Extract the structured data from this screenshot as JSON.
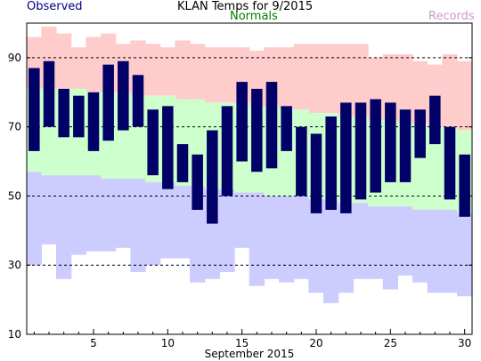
{
  "chart_data": {
    "type": "bar",
    "title": "KLAN Temps for 9/2015",
    "xlabel": "September 2015",
    "ylabel": "",
    "ylim": [
      10,
      100
    ],
    "xlim": [
      0.5,
      30.5
    ],
    "yticks": [
      10,
      30,
      50,
      70,
      90
    ],
    "xticks": [
      5,
      10,
      15,
      20,
      25,
      30
    ],
    "grid": "dashed horizontal at 30, 50, 70, 90",
    "legend": "top row: Observed (left), Normals (center), Records (right)",
    "legend_labels": {
      "observed": "Observed",
      "normals": "Normals",
      "records": "Records"
    },
    "colors": {
      "observed": "#000066",
      "normals": "#ccffcc",
      "records_high": "#ffcccc",
      "records_low": "#ccccff",
      "observed_text": "#000080",
      "normals_text": "#008000",
      "records_text": "#cc99cc"
    },
    "days": [
      1,
      2,
      3,
      4,
      5,
      6,
      7,
      8,
      9,
      10,
      11,
      12,
      13,
      14,
      15,
      16,
      17,
      18,
      19,
      20,
      21,
      22,
      23,
      24,
      25,
      26,
      27,
      28,
      29,
      30
    ],
    "observed_high": [
      87,
      89,
      81,
      79,
      80,
      88,
      89,
      85,
      75,
      76,
      65,
      62,
      69,
      76,
      83,
      81,
      83,
      76,
      70,
      68,
      73,
      77,
      77,
      78,
      77,
      75,
      75,
      79,
      70,
      62
    ],
    "observed_low": [
      63,
      70,
      67,
      67,
      63,
      66,
      69,
      70,
      56,
      52,
      54,
      46,
      42,
      50,
      60,
      57,
      58,
      63,
      50,
      45,
      46,
      45,
      49,
      51,
      54,
      54,
      61,
      65,
      49,
      44
    ],
    "normal_high": [
      81,
      81,
      81,
      81,
      80,
      80,
      80,
      79,
      79,
      79,
      78,
      78,
      77,
      77,
      77,
      76,
      76,
      75,
      75,
      74,
      74,
      73,
      73,
      72,
      72,
      71,
      71,
      70,
      70,
      69
    ],
    "normal_low": [
      57,
      56,
      56,
      56,
      56,
      55,
      55,
      55,
      54,
      54,
      53,
      53,
      52,
      52,
      51,
      51,
      50,
      50,
      50,
      49,
      49,
      48,
      48,
      47,
      47,
      47,
      46,
      46,
      46,
      45
    ],
    "record_high": [
      96,
      99,
      97,
      93,
      96,
      97,
      94,
      95,
      94,
      93,
      95,
      94,
      93,
      93,
      93,
      92,
      93,
      93,
      94,
      94,
      94,
      94,
      94,
      90,
      91,
      91,
      89,
      88,
      91,
      89
    ],
    "record_low": [
      30,
      36,
      26,
      33,
      34,
      34,
      35,
      28,
      30,
      32,
      32,
      25,
      26,
      28,
      35,
      24,
      26,
      25,
      26,
      22,
      19,
      22,
      26,
      26,
      23,
      27,
      25,
      22,
      22,
      21
    ]
  }
}
